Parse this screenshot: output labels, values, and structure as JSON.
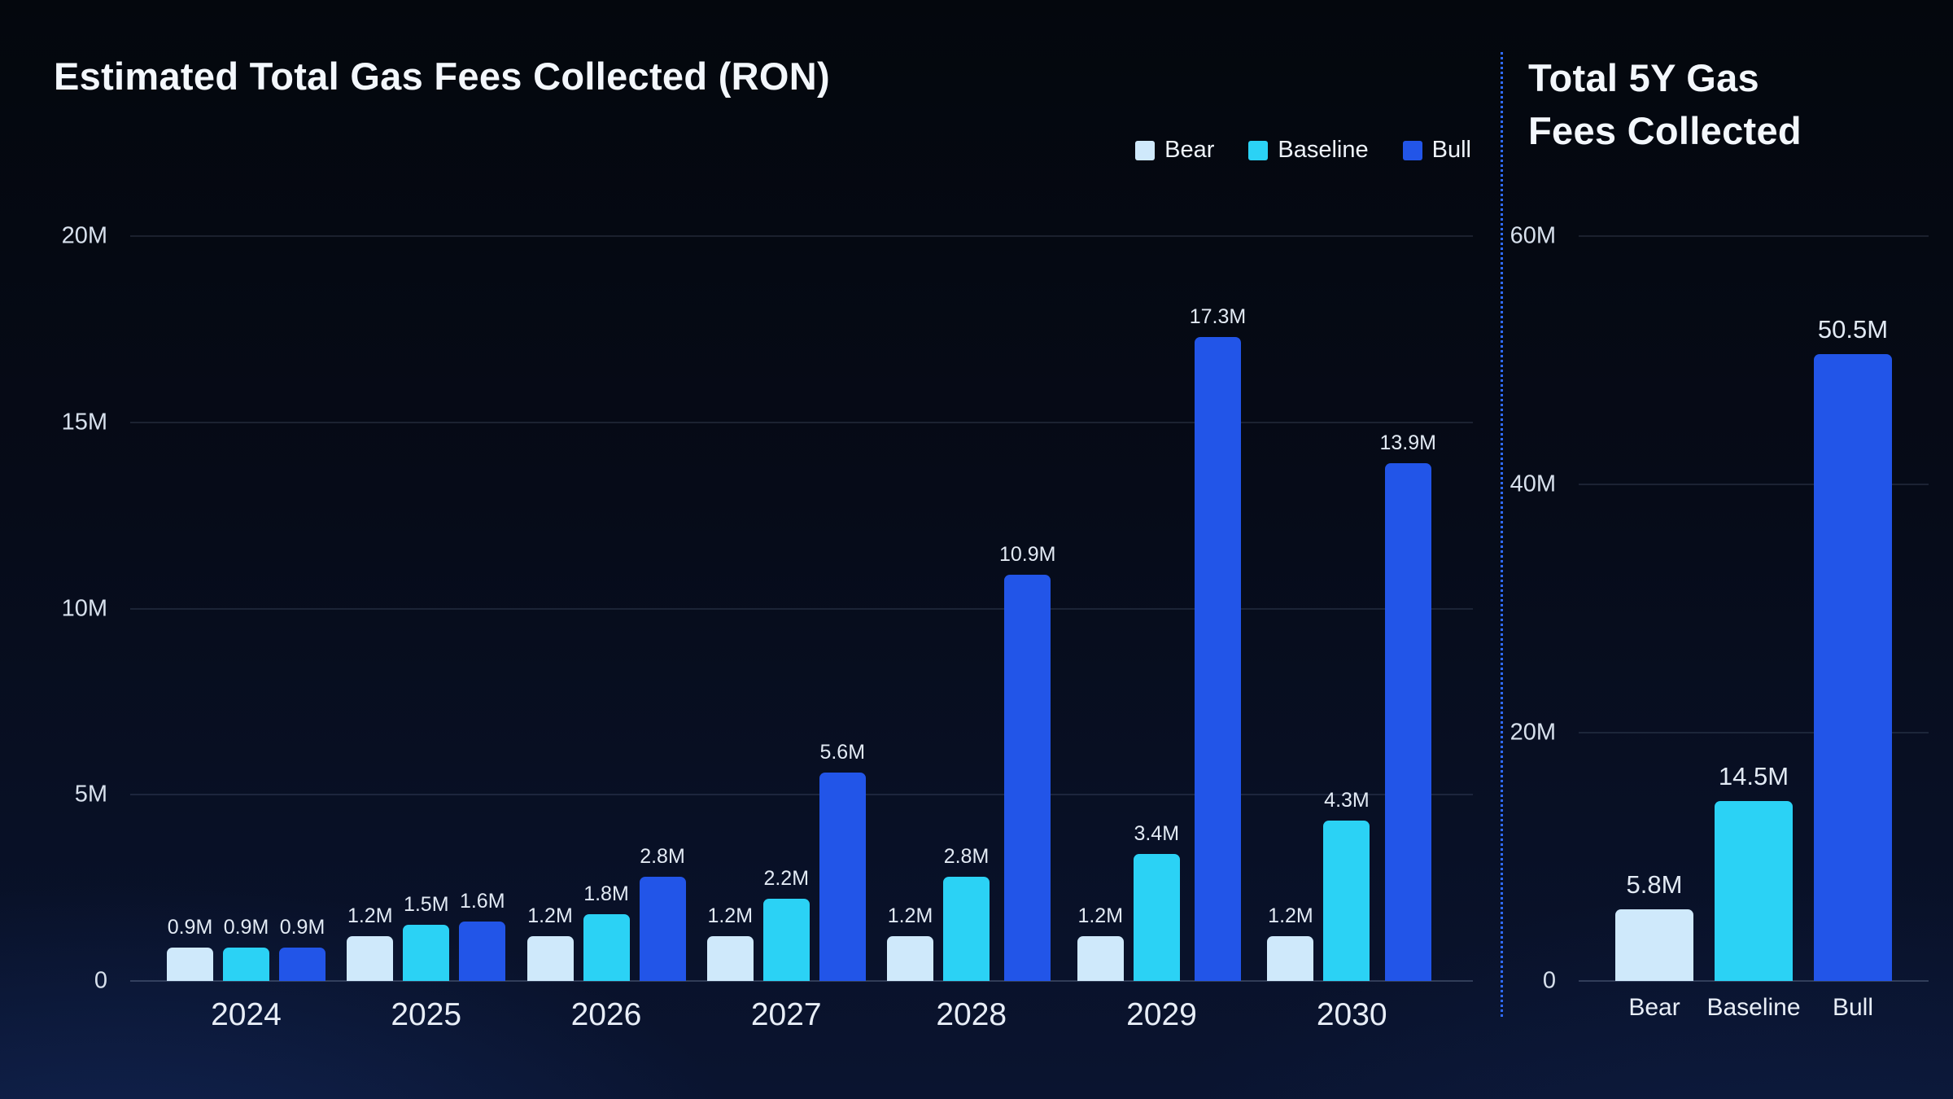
{
  "page": {
    "background_top": "#04070d",
    "background_bottom": "#0a1430",
    "divider_color": "#2f6bff",
    "text_color": "#e9eff7"
  },
  "chart_data": [
    {
      "type": "bar",
      "title": "Estimated Total Gas Fees Collected (RON)",
      "unit": "RON (millions)",
      "categories": [
        "2024",
        "2025",
        "2026",
        "2027",
        "2028",
        "2029",
        "2030"
      ],
      "series": [
        {
          "name": "Bear",
          "color": "#cfe9fb",
          "values": [
            0.9,
            1.2,
            1.2,
            1.2,
            1.2,
            1.2,
            1.2
          ],
          "labels": [
            "0.9M",
            "1.2M",
            "1.2M",
            "1.2M",
            "1.2M",
            "1.2M",
            "1.2M"
          ]
        },
        {
          "name": "Baseline",
          "color": "#2bd2f5",
          "values": [
            0.9,
            1.5,
            1.8,
            2.2,
            2.8,
            3.4,
            4.3
          ],
          "labels": [
            "0.9M",
            "1.5M",
            "1.8M",
            "2.2M",
            "2.8M",
            "3.4M",
            "4.3M"
          ]
        },
        {
          "name": "Bull",
          "color": "#2255e8",
          "values": [
            0.9,
            1.6,
            2.8,
            5.6,
            10.9,
            17.3,
            13.9
          ],
          "labels": [
            "0.9M",
            "1.6M",
            "2.8M",
            "5.6M",
            "10.9M",
            "17.3M",
            "13.9M"
          ]
        }
      ],
      "ylim": [
        0,
        20
      ],
      "yticks": [
        [
          0,
          "0"
        ],
        [
          5,
          "5M"
        ],
        [
          10,
          "10M"
        ],
        [
          15,
          "15M"
        ],
        [
          20,
          "20M"
        ]
      ],
      "grid": true,
      "legend_position": "top-right"
    },
    {
      "type": "bar",
      "title": "Total 5Y Gas Fees Collected",
      "unit": "RON (millions)",
      "categories": [
        "Bear",
        "Baseline",
        "Bull"
      ],
      "values": [
        5.8,
        14.5,
        50.5
      ],
      "labels": [
        "5.8M",
        "14.5M",
        "50.5M"
      ],
      "colors": [
        "#cfe9fb",
        "#2bd2f5",
        "#2255e8"
      ],
      "ylim": [
        0,
        60
      ],
      "yticks": [
        [
          0,
          "0"
        ],
        [
          20,
          "20M"
        ],
        [
          40,
          "40M"
        ],
        [
          60,
          "60M"
        ]
      ],
      "grid": true,
      "legend_position": "none"
    }
  ]
}
